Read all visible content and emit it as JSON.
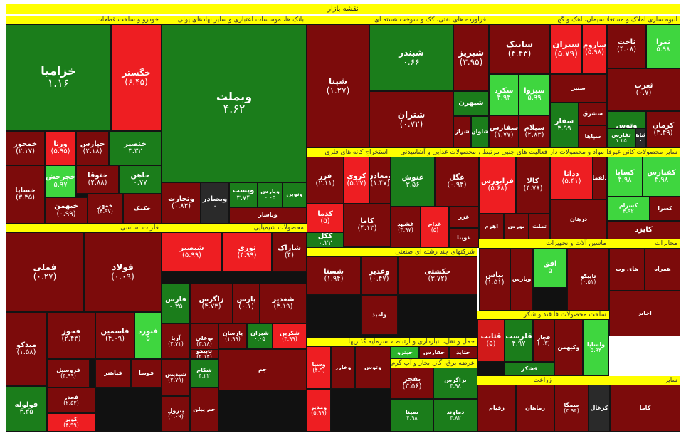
{
  "map_title": "نقشه بازار",
  "sectors": [
    {
      "key": "s1",
      "name": "خودرو و ساخت قطعات",
      "tiles": [
        {
          "name": "خزامیا",
          "change": "۱.۱۶",
          "color": "dg",
          "size": "big"
        },
        {
          "name": "خگستر",
          "change": "(۶.۴۵)",
          "color": "br",
          "size": "mid"
        },
        {
          "name": "خمحور",
          "change": "(۲.۱۷)",
          "color": "dr",
          "size": "sm"
        },
        {
          "name": "ورنا",
          "change": "(۵.۹۵)",
          "color": "br",
          "size": "sm"
        },
        {
          "name": "خپارس",
          "change": "(۲.۱۸)",
          "color": "dr",
          "size": "sm"
        },
        {
          "name": "خنصیر",
          "change": "۳.۳۲",
          "color": "dg",
          "size": "sm"
        },
        {
          "name": "خساپا",
          "change": "(۳.۳۵)",
          "color": "dr",
          "size": "sm"
        },
        {
          "name": "خچرخش",
          "change": "۵.۹۷",
          "color": "bg",
          "size": "sm"
        },
        {
          "name": "ختوقا",
          "change": "(۲.۸۸)",
          "color": "dr",
          "size": "sm"
        },
        {
          "name": "خاهن",
          "change": "۰.۷۷",
          "color": "dg",
          "size": "sm"
        },
        {
          "name": "خبهمن",
          "change": "(۰.۹۹)",
          "color": "dr",
          "size": "sm"
        },
        {
          "name": "خمهر",
          "change": "(۴.۹۷)",
          "color": "dr",
          "size": "xs"
        },
        {
          "name": "خکمک",
          "change": "",
          "color": "dr",
          "size": "xs"
        }
      ]
    },
    {
      "key": "s2",
      "name": "بانک ها، موسسات اعتباری و سایر نهادهای پولی",
      "tiles": [
        {
          "name": "وبملت",
          "change": "۴.۶۲",
          "color": "dg",
          "size": "big"
        },
        {
          "name": "وتجارت",
          "change": "(۰.۸۳)",
          "color": "dr",
          "size": "sm"
        },
        {
          "name": "وبصادر",
          "change": "۰",
          "color": "k",
          "size": "sm"
        },
        {
          "name": "وپست",
          "change": "۳.۷۴",
          "color": "dg",
          "size": "sm"
        },
        {
          "name": "وپارس",
          "change": "۰.۰۵",
          "color": "dg",
          "size": "xs"
        },
        {
          "name": "ونوین",
          "change": "",
          "color": "dg",
          "size": "xs"
        },
        {
          "name": "وپاسار",
          "change": "",
          "color": "dr",
          "size": "xs"
        }
      ]
    },
    {
      "key": "s3",
      "name": "فراورده های نفتی، کک و سوخت هسته ای",
      "tiles": [
        {
          "name": "شپنا",
          "change": "(۱.۲۷)",
          "color": "dr",
          "size": "mid"
        },
        {
          "name": "شبندر",
          "change": "۰.۶۶",
          "color": "dg",
          "size": "mid"
        },
        {
          "name": "شبریز",
          "change": "(۳.۹۵)",
          "color": "dr",
          "size": "mid"
        },
        {
          "name": "شتران",
          "change": "(۰.۷۲)",
          "color": "dr",
          "size": "mid"
        },
        {
          "name": "شبهرن",
          "change": "",
          "color": "dg",
          "size": "sm"
        },
        {
          "name": "شراز",
          "change": "",
          "color": "dr",
          "size": "xs"
        },
        {
          "name": "شاوان",
          "change": "",
          "color": "dg",
          "size": "xs"
        }
      ]
    },
    {
      "key": "s4",
      "name": "سیمان، آهک و گچ",
      "tiles": [
        {
          "name": "سابیک",
          "change": "(۴.۴۳)",
          "color": "dr",
          "size": "mid"
        },
        {
          "name": "ستران",
          "change": "(۵.۷۹)",
          "color": "br",
          "size": "mid"
        },
        {
          "name": "ساروم",
          "change": "(۵.۹۸)",
          "color": "br",
          "size": "sm"
        },
        {
          "name": "سکرد",
          "change": "۴.۹۴",
          "color": "bg",
          "size": "sm"
        },
        {
          "name": "سیزوا",
          "change": "۵.۹۹",
          "color": "bg",
          "size": "sm"
        },
        {
          "name": "سنیر",
          "change": "",
          "color": "dr",
          "size": "xs"
        },
        {
          "name": "سیلام",
          "change": "(۲.۸۳)",
          "color": "dr",
          "size": "sm"
        },
        {
          "name": "سفارس",
          "change": "(۱.۷۷)",
          "color": "dr",
          "size": "sm"
        },
        {
          "name": "سفار",
          "change": "۳.۹۹",
          "color": "dg",
          "size": "sm"
        },
        {
          "name": "سشرق",
          "change": "",
          "color": "dr",
          "size": "xs"
        },
        {
          "name": "سپاها",
          "change": "",
          "color": "dr",
          "size": "xs"
        }
      ]
    },
    {
      "key": "s5",
      "name": "انبوه سازی املاک و مستغلات",
      "tiles": [
        {
          "name": "ثاخت",
          "change": "(۴.۰۸)",
          "color": "dr",
          "size": "sm"
        },
        {
          "name": "ثمرا",
          "change": "۵.۹۸",
          "color": "bg",
          "size": "sm"
        },
        {
          "name": "ثغرب",
          "change": "(۰.۷)",
          "color": "dr",
          "size": "sm"
        },
        {
          "name": "کرمان",
          "change": "(۳.۴۹)",
          "color": "dr",
          "size": "sm"
        },
        {
          "name": "وتوس",
          "change": "۳.۶۳",
          "color": "dg",
          "size": "sm"
        },
        {
          "name": "ثفارس",
          "change": "۱.۲۵",
          "color": "dg",
          "size": "xs"
        },
        {
          "name": "ثشاهد",
          "change": "۰",
          "color": "k",
          "size": "xs"
        }
      ]
    },
    {
      "key": "s6",
      "name": "محصولات غذایی و آشامیدنی",
      "tiles": [
        {
          "name": "غنوش",
          "change": "۳.۵۶",
          "color": "dg",
          "size": "sm"
        },
        {
          "name": "غگل",
          "change": "(۰.۹۴)",
          "color": "dr",
          "size": "sm"
        },
        {
          "name": "غشهد",
          "change": "(۴.۹۷)",
          "color": "dr",
          "size": "xs"
        },
        {
          "name": "غدام",
          "change": "(۵)",
          "color": "br",
          "size": "xs"
        },
        {
          "name": "غزر",
          "change": "",
          "color": "dr",
          "size": "xs"
        },
        {
          "name": "غویتا",
          "change": "",
          "color": "dr",
          "size": "xs"
        }
      ]
    },
    {
      "key": "s7",
      "name": "استخراج کانه های فلزی",
      "tiles": [
        {
          "name": "فزر",
          "change": "(۲.۱۱)",
          "color": "dr",
          "size": "sm"
        },
        {
          "name": "کروی",
          "change": "(۵.۲۷)",
          "color": "br",
          "size": "sm"
        },
        {
          "name": "ومعادن",
          "change": "(۱.۴۷)",
          "color": "dr",
          "size": "sm"
        },
        {
          "name": "کدما",
          "change": "(۵)",
          "color": "br",
          "size": "sm"
        },
        {
          "name": "کاما",
          "change": "(۴.۱۳)",
          "color": "dr",
          "size": "sm"
        },
        {
          "name": "کگل",
          "change": "۰.۲۲",
          "color": "dg",
          "size": "sm"
        },
        {
          "name": "کچاد",
          "change": "",
          "color": "dr",
          "size": "xs"
        }
      ]
    },
    {
      "key": "s8",
      "name": "فعالیت های جنبی مرتبط با تامین مالی",
      "tiles": [
        {
          "name": "فرابورس",
          "change": "(۵.۶۸)",
          "color": "br",
          "size": "sm"
        },
        {
          "name": "کالا",
          "change": "(۴.۷۸)",
          "color": "dr",
          "size": "sm"
        },
        {
          "name": "اهرم",
          "change": "",
          "color": "dr",
          "size": "xs"
        },
        {
          "name": "بورس",
          "change": "",
          "color": "dr",
          "size": "xs"
        },
        {
          "name": "تملت",
          "change": "",
          "color": "dr",
          "size": "xs"
        }
      ]
    },
    {
      "key": "s9",
      "name": "مواد و محصولات دارویی",
      "tiles": [
        {
          "name": "ددانا",
          "change": "(۵.۴۱)",
          "color": "br",
          "size": "sm"
        },
        {
          "name": "دلقما",
          "change": "",
          "color": "dr",
          "size": "xs"
        },
        {
          "name": "درهان",
          "change": "",
          "color": "dr",
          "size": "xs"
        }
      ]
    },
    {
      "key": "s10",
      "name": "سایر محصولات کانی غیرفلزی",
      "tiles": [
        {
          "name": "کساپا",
          "change": "۴.۹۸",
          "color": "bg",
          "size": "sm"
        },
        {
          "name": "کفپارس",
          "change": "۴.۹۸",
          "color": "bg",
          "size": "sm"
        },
        {
          "name": "کایزد",
          "change": "",
          "color": "dr",
          "size": "sm"
        },
        {
          "name": "کسرام",
          "change": "۴.۹۲",
          "color": "bg",
          "size": "xs"
        },
        {
          "name": "کسرا",
          "change": "",
          "color": "dr",
          "size": "xs"
        }
      ]
    },
    {
      "key": "s11",
      "name": "فلزات اساسی",
      "tiles": [
        {
          "name": "فملی",
          "change": "(۰.۲۷)",
          "color": "dr",
          "size": "mid"
        },
        {
          "name": "فولاد",
          "change": "(۰.۰۹)",
          "color": "dr",
          "size": "mid"
        },
        {
          "name": "میدکو",
          "change": "(۱.۵۸)",
          "color": "dr",
          "size": "sm"
        },
        {
          "name": "فخوز",
          "change": "(۲.۴۳)",
          "color": "dr",
          "size": "sm"
        },
        {
          "name": "فاسمین",
          "change": "(۴.۰۹)",
          "color": "dr",
          "size": "sm"
        },
        {
          "name": "فنورد",
          "change": "۵",
          "color": "bg",
          "size": "sm"
        },
        {
          "name": "فروسیل",
          "change": "(۴.۹۹)",
          "color": "dr",
          "size": "xs"
        },
        {
          "name": "فولوله",
          "change": "۳.۳۵",
          "color": "dg",
          "size": "sm"
        },
        {
          "name": "فجدر",
          "change": "(۲.۵۲)",
          "color": "dr",
          "size": "xs"
        },
        {
          "name": "کویر",
          "change": "(۴.۹۹)",
          "color": "br",
          "size": "xs"
        },
        {
          "name": "فباهنر",
          "change": "",
          "color": "dr",
          "size": "xs"
        },
        {
          "name": "فوسا",
          "change": "",
          "color": "dr",
          "size": "xs"
        }
      ]
    },
    {
      "key": "s12",
      "name": "محصولات شیمیایی",
      "tiles": [
        {
          "name": "شبصیر",
          "change": "(۵.۹۹)",
          "color": "br",
          "size": "sm"
        },
        {
          "name": "نوری",
          "change": "(۴.۹۹)",
          "color": "br",
          "size": "sm"
        },
        {
          "name": "شاراک",
          "change": "(۴)",
          "color": "dr",
          "size": "sm"
        },
        {
          "name": "فارس",
          "change": "۰.۳۵",
          "color": "dg",
          "size": "sm"
        },
        {
          "name": "زاگرس",
          "change": "(۴.۷۳)",
          "color": "dr",
          "size": "sm"
        },
        {
          "name": "پارس",
          "change": "(۰.۱)",
          "color": "dr",
          "size": "sm"
        },
        {
          "name": "شغدیر",
          "change": "(۳.۱۹)",
          "color": "dr",
          "size": "sm"
        },
        {
          "name": "آریا",
          "change": "(۲.۷۱)",
          "color": "dr",
          "size": "xs"
        },
        {
          "name": "بوعلی",
          "change": "(۳.۱۸)",
          "color": "dr",
          "size": "xs"
        },
        {
          "name": "پارسان",
          "change": "(۱.۹۹)",
          "color": "dr",
          "size": "xs"
        },
        {
          "name": "شیران",
          "change": "۰.۰۵",
          "color": "dg",
          "size": "xs"
        },
        {
          "name": "شکرین",
          "change": "(۴.۹۹)",
          "color": "br",
          "size": "xs"
        },
        {
          "name": "شکام",
          "change": "۴.۲۲",
          "color": "dg",
          "size": "xs"
        },
        {
          "name": "تاپیکو",
          "change": "(۲.۱۴)",
          "color": "dr",
          "size": "xs"
        },
        {
          "name": "شپدیس",
          "change": "(۲.۷۹)",
          "color": "dr",
          "size": "xs"
        },
        {
          "name": "پترول",
          "change": "(۱.۰۹)",
          "color": "dr",
          "size": "xs"
        },
        {
          "name": "جم",
          "change": "",
          "color": "dr",
          "size": "xs"
        },
        {
          "name": "جم پیلن",
          "change": "",
          "color": "dr",
          "size": "xs"
        }
      ]
    },
    {
      "key": "s13",
      "name": "شرکتهای چند رشته ای صنعتی",
      "tiles": [
        {
          "name": "شستا",
          "change": "(۱.۹۴)",
          "color": "dr",
          "size": "sm"
        },
        {
          "name": "وغدیر",
          "change": "(۰.۴۷)",
          "color": "dr",
          "size": "sm"
        },
        {
          "name": "حکشتی",
          "change": "(۳.۷۲)",
          "color": "dr",
          "size": "sm"
        },
        {
          "name": "وامید",
          "change": "",
          "color": "dr",
          "size": "xs"
        },
        {
          "name": "وصنعت",
          "change": "(۵.۱۷)",
          "color": "br",
          "size": "xs"
        }
      ]
    },
    {
      "key": "s14",
      "name": "حمل و نقل، انبارداری و ارتباطات",
      "tiles": [
        {
          "name": "حپترو",
          "change": "",
          "color": "g",
          "size": "xs"
        },
        {
          "name": "حفارس",
          "change": "",
          "color": "dr",
          "size": "xs"
        },
        {
          "name": "حتاید",
          "change": "",
          "color": "dr",
          "size": "xs"
        }
      ]
    },
    {
      "key": "s15",
      "name": "سرمایه گذاریها",
      "tiles": [
        {
          "name": "وسپا",
          "change": "(۴.۹)",
          "color": "br",
          "size": "xs"
        },
        {
          "name": "وخارز",
          "change": "",
          "color": "dr",
          "size": "xs"
        },
        {
          "name": "وتوس",
          "change": "",
          "color": "dr",
          "size": "xs"
        },
        {
          "name": "ومدیر",
          "change": "(۵.۹۹)",
          "color": "br",
          "size": "xs"
        }
      ]
    },
    {
      "key": "s16",
      "name": "عرضه برق، گاز، بخار و آب گرم",
      "tiles": [
        {
          "name": "بفجر",
          "change": "(۳.۵۶)",
          "color": "dr",
          "size": "sm"
        },
        {
          "name": "بزاگرس",
          "change": "۴.۹۸",
          "color": "dg",
          "size": "xs"
        },
        {
          "name": "دماوند",
          "change": "۴.۸۲",
          "color": "dg",
          "size": "xs"
        },
        {
          "name": "بمپنا",
          "change": "۴.۹۸",
          "color": "dg",
          "size": "xs"
        },
        {
          "name": "بکاب",
          "change": "",
          "color": "dr",
          "size": "xs"
        }
      ]
    },
    {
      "key": "s17",
      "name": "قند و شکر",
      "tiles": [
        {
          "name": "قثابت",
          "change": "(۵)",
          "color": "r",
          "size": "sm"
        },
        {
          "name": "قلرست",
          "change": "۴.۹۷",
          "color": "dg",
          "size": "sm"
        },
        {
          "name": "قچار",
          "change": "(۰.۳)",
          "color": "dr",
          "size": "xs"
        },
        {
          "name": "قشکر",
          "change": "",
          "color": "dg",
          "size": "xs"
        }
      ]
    },
    {
      "key": "s18",
      "name": "ماشین آلات و تجهیزات",
      "tiles": [
        {
          "name": "بیاس",
          "change": "(۱.۵۱)",
          "color": "dr",
          "size": "sm"
        },
        {
          "name": "افق",
          "change": "۵",
          "color": "bg",
          "size": "sm"
        },
        {
          "name": "وپارس",
          "change": "",
          "color": "dr",
          "size": "xs"
        },
        {
          "name": "تاپیکو",
          "change": "(۰.۵۱)",
          "color": "dr",
          "size": "xs"
        }
      ]
    },
    {
      "key": "s19",
      "name": "مخابرات",
      "tiles": [
        {
          "name": "های وب",
          "change": "",
          "color": "dr",
          "size": "xs"
        },
        {
          "name": "همراه",
          "change": "",
          "color": "dr",
          "size": "xs"
        },
        {
          "name": "اخابر",
          "change": "",
          "color": "dr",
          "size": "xs"
        }
      ]
    },
    {
      "key": "s20",
      "name": "ساخت محصولات فلزی",
      "tiles": [
        {
          "name": "وکبهمن",
          "change": "",
          "color": "dr",
          "size": "xs"
        },
        {
          "name": "ولساپا",
          "change": "۵.۹۴",
          "color": "bg",
          "size": "xs"
        }
      ]
    },
    {
      "key": "s21",
      "name": "زراعت",
      "tiles": [
        {
          "name": "زقیام",
          "change": "",
          "color": "dr",
          "size": "xs"
        },
        {
          "name": "زماهان",
          "change": "",
          "color": "dr",
          "size": "xs"
        }
      ]
    },
    {
      "key": "s22",
      "name": "سایر",
      "tiles": [
        {
          "name": "سمگا",
          "change": "(۳.۹۴)",
          "color": "dr",
          "size": "xs"
        },
        {
          "name": "کزغال",
          "change": "",
          "color": "k",
          "size": "xs"
        },
        {
          "name": "کاما",
          "change": "",
          "color": "dr",
          "size": "xs"
        }
      ]
    }
  ]
}
